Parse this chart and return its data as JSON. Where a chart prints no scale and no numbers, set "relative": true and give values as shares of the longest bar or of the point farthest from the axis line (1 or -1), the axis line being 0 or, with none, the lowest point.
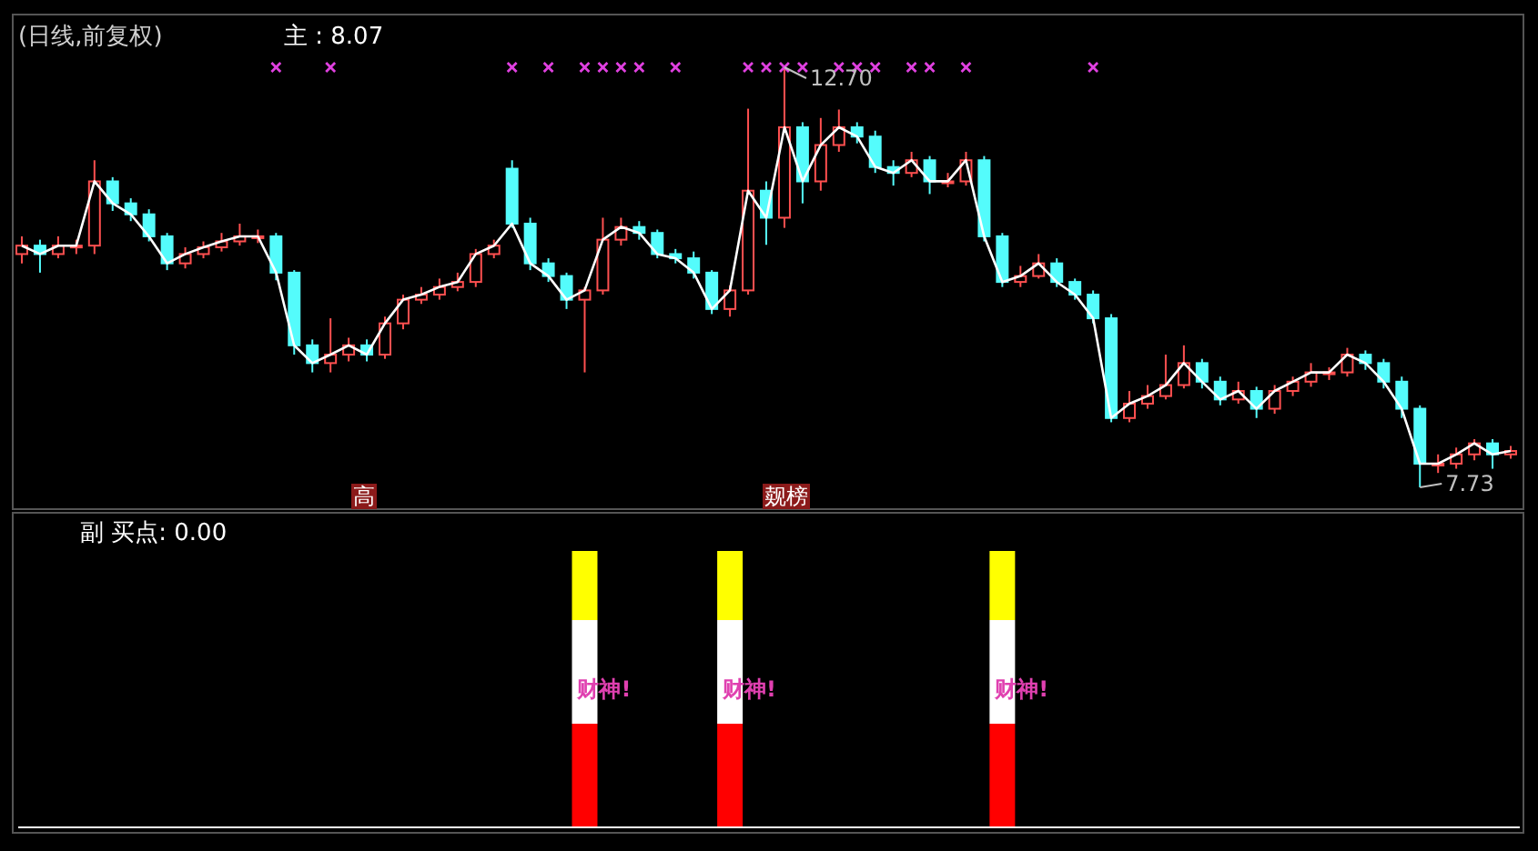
{
  "chart_data": [
    {
      "type": "candlestick",
      "title": "(日线,前复权)",
      "annotations": [
        "主 : 8.07",
        "高",
        "觌榜"
      ],
      "categories": [
        null,
        null,
        null,
        null,
        null,
        null,
        null,
        null,
        null,
        null,
        null,
        null,
        null,
        null,
        null,
        null,
        null,
        null,
        null,
        null,
        null,
        null,
        null,
        null,
        null,
        null,
        null,
        null,
        null,
        null,
        null,
        null,
        null,
        null,
        null,
        null,
        null,
        null,
        null,
        null,
        null,
        null,
        null,
        null,
        null,
        null,
        null,
        null,
        null,
        null,
        null,
        null,
        null,
        null,
        null,
        null,
        null,
        null,
        null,
        null,
        null,
        null,
        null,
        null,
        null,
        null,
        null,
        null,
        null,
        null,
        null,
        null,
        null,
        null,
        null,
        null,
        null,
        null,
        null,
        null,
        null,
        null,
        null
      ],
      "ohlc": [
        [
          10.49,
          10.7,
          10.38,
          10.59
        ],
        [
          10.59,
          10.66,
          10.27,
          10.49
        ],
        [
          10.49,
          10.7,
          10.44,
          10.59
        ],
        [
          10.59,
          10.66,
          10.49,
          10.59
        ],
        [
          10.59,
          11.6,
          10.49,
          11.35
        ],
        [
          11.35,
          11.4,
          11.0,
          11.09
        ],
        [
          11.09,
          11.15,
          10.88,
          10.96
        ],
        [
          10.96,
          11.02,
          10.64,
          10.7
        ],
        [
          10.7,
          10.74,
          10.3,
          10.38
        ],
        [
          10.38,
          10.57,
          10.32,
          10.49
        ],
        [
          10.49,
          10.64,
          10.44,
          10.57
        ],
        [
          10.57,
          10.74,
          10.52,
          10.64
        ],
        [
          10.64,
          10.85,
          10.59,
          10.7
        ],
        [
          10.7,
          10.78,
          10.62,
          10.7
        ],
        [
          10.7,
          10.74,
          10.18,
          10.27
        ],
        [
          10.27,
          10.3,
          9.3,
          9.41
        ],
        [
          9.41,
          9.48,
          9.09,
          9.2
        ],
        [
          9.2,
          9.73,
          9.09,
          9.3
        ],
        [
          9.3,
          9.5,
          9.22,
          9.41
        ],
        [
          9.41,
          9.48,
          9.22,
          9.3
        ],
        [
          9.3,
          9.75,
          9.25,
          9.67
        ],
        [
          9.67,
          10.01,
          9.6,
          9.95
        ],
        [
          9.95,
          10.1,
          9.9,
          10.01
        ],
        [
          10.01,
          10.2,
          9.95,
          10.1
        ],
        [
          10.1,
          10.27,
          10.05,
          10.16
        ],
        [
          10.16,
          10.55,
          10.1,
          10.49
        ],
        [
          10.49,
          10.66,
          10.44,
          10.59
        ],
        [
          11.5,
          11.6,
          10.8,
          10.85
        ],
        [
          10.85,
          10.92,
          10.3,
          10.38
        ],
        [
          10.38,
          10.44,
          10.16,
          10.23
        ],
        [
          10.23,
          10.27,
          9.84,
          9.95
        ],
        [
          9.95,
          10.1,
          9.09,
          10.06
        ],
        [
          10.06,
          10.92,
          10.01,
          10.66
        ],
        [
          10.66,
          10.92,
          10.59,
          10.81
        ],
        [
          10.81,
          10.88,
          10.66,
          10.74
        ],
        [
          10.74,
          10.78,
          10.44,
          10.49
        ],
        [
          10.49,
          10.55,
          10.38,
          10.44
        ],
        [
          10.44,
          10.52,
          10.2,
          10.27
        ],
        [
          10.27,
          10.3,
          9.78,
          9.84
        ],
        [
          9.84,
          10.12,
          9.75,
          10.06
        ],
        [
          10.06,
          12.21,
          10.01,
          11.24
        ],
        [
          11.24,
          11.35,
          10.6,
          10.92
        ],
        [
          10.92,
          12.7,
          10.8,
          11.99
        ],
        [
          11.99,
          12.05,
          11.09,
          11.35
        ],
        [
          11.35,
          12.1,
          11.24,
          11.78
        ],
        [
          11.78,
          12.2,
          11.7,
          11.99
        ],
        [
          11.99,
          12.05,
          11.8,
          11.88
        ],
        [
          11.88,
          11.95,
          11.45,
          11.52
        ],
        [
          11.52,
          11.6,
          11.3,
          11.45
        ],
        [
          11.45,
          11.7,
          11.4,
          11.6
        ],
        [
          11.6,
          11.65,
          11.2,
          11.35
        ],
        [
          11.35,
          11.45,
          11.28,
          11.35
        ],
        [
          11.35,
          11.7,
          11.3,
          11.6
        ],
        [
          11.6,
          11.65,
          10.64,
          10.7
        ],
        [
          10.7,
          10.74,
          10.1,
          10.16
        ],
        [
          10.16,
          10.35,
          10.1,
          10.23
        ],
        [
          10.23,
          10.49,
          10.2,
          10.38
        ],
        [
          10.38,
          10.44,
          10.1,
          10.16
        ],
        [
          10.16,
          10.2,
          9.95,
          10.01
        ],
        [
          10.01,
          10.06,
          9.67,
          9.73
        ],
        [
          9.73,
          9.78,
          8.5,
          8.55
        ],
        [
          8.55,
          8.87,
          8.5,
          8.72
        ],
        [
          8.72,
          8.94,
          8.66,
          8.81
        ],
        [
          8.81,
          9.3,
          8.77,
          8.94
        ],
        [
          8.94,
          9.41,
          8.9,
          9.2
        ],
        [
          9.2,
          9.25,
          8.9,
          8.98
        ],
        [
          8.98,
          9.04,
          8.7,
          8.77
        ],
        [
          8.77,
          8.98,
          8.72,
          8.87
        ],
        [
          8.87,
          8.92,
          8.55,
          8.66
        ],
        [
          8.66,
          8.94,
          8.6,
          8.87
        ],
        [
          8.87,
          9.04,
          8.81,
          8.98
        ],
        [
          8.98,
          9.2,
          8.92,
          9.09
        ],
        [
          9.09,
          9.15,
          9.0,
          9.09
        ],
        [
          9.09,
          9.38,
          9.04,
          9.3
        ],
        [
          9.3,
          9.35,
          9.12,
          9.2
        ],
        [
          9.2,
          9.25,
          8.9,
          8.98
        ],
        [
          8.98,
          9.04,
          8.55,
          8.66
        ],
        [
          8.66,
          8.7,
          7.73,
          8.01
        ],
        [
          8.01,
          8.12,
          7.9,
          8.01
        ],
        [
          8.01,
          8.2,
          7.95,
          8.12
        ],
        [
          8.12,
          8.3,
          8.05,
          8.25
        ],
        [
          8.25,
          8.3,
          7.95,
          8.12
        ],
        [
          8.12,
          8.22,
          8.07,
          8.16
        ]
      ],
      "value_labels": [
        null,
        null,
        null,
        null,
        null,
        null,
        null,
        null,
        null,
        null,
        null,
        null,
        null,
        null,
        null,
        null,
        null,
        null,
        null,
        null,
        null,
        null,
        null,
        null,
        null,
        null,
        null,
        null,
        null,
        null,
        null,
        null,
        null,
        null,
        null,
        null,
        null,
        null,
        null,
        null,
        null,
        null,
        "12.70",
        null,
        null,
        null,
        null,
        null,
        null,
        null,
        null,
        null,
        null,
        null,
        null,
        null,
        null,
        null,
        null,
        null,
        null,
        null,
        null,
        null,
        null,
        null,
        null,
        null,
        null,
        null,
        null,
        null,
        null,
        null,
        null,
        null,
        null,
        "7.73",
        null,
        null,
        null,
        null,
        null
      ],
      "series": [
        {
          "type": "line",
          "color": "#ffffff",
          "values": [
            10.59,
            10.49,
            10.59,
            10.59,
            11.35,
            11.09,
            10.96,
            10.7,
            10.38,
            10.49,
            10.57,
            10.64,
            10.7,
            10.7,
            10.27,
            9.41,
            9.2,
            9.3,
            9.41,
            9.3,
            9.67,
            9.95,
            10.01,
            10.1,
            10.16,
            10.49,
            10.59,
            10.85,
            10.38,
            10.23,
            9.95,
            10.06,
            10.66,
            10.81,
            10.74,
            10.49,
            10.44,
            10.27,
            9.84,
            10.06,
            11.24,
            10.92,
            11.99,
            11.35,
            11.78,
            11.99,
            11.88,
            11.52,
            11.45,
            11.6,
            11.35,
            11.35,
            11.6,
            10.7,
            10.16,
            10.23,
            10.38,
            10.16,
            10.01,
            9.73,
            8.55,
            8.72,
            8.81,
            8.94,
            9.2,
            8.98,
            8.77,
            8.87,
            8.66,
            8.87,
            8.98,
            9.09,
            9.09,
            9.3,
            9.2,
            8.98,
            8.66,
            8.01,
            8.01,
            8.12,
            8.25,
            8.12,
            8.16
          ]
        },
        {
          "type": "scatter",
          "marker": "cross",
          "color": "#e040e0",
          "values": [
            null,
            null,
            null,
            null,
            null,
            null,
            null,
            null,
            null,
            null,
            null,
            null,
            null,
            null,
            12.7,
            null,
            null,
            12.7,
            null,
            null,
            null,
            null,
            null,
            null,
            null,
            null,
            null,
            12.7,
            null,
            12.7,
            null,
            12.7,
            12.7,
            12.7,
            12.7,
            null,
            12.7,
            null,
            null,
            null,
            12.7,
            12.7,
            12.7,
            12.7,
            null,
            12.7,
            12.7,
            12.7,
            null,
            12.7,
            12.7,
            null,
            12.7,
            null,
            null,
            null,
            null,
            null,
            null,
            12.7,
            null,
            null,
            null,
            null,
            null,
            null,
            null,
            null,
            null,
            null,
            null,
            null,
            null,
            null,
            null,
            null,
            null,
            null,
            null,
            null,
            null,
            null,
            null
          ]
        }
      ]
    },
    {
      "type": "bar",
      "stacked": true,
      "relative": true,
      "annotations": [
        "副 买点: 0.00",
        "财神!",
        "财神!",
        "财神!"
      ],
      "categories": [
        null,
        null,
        null,
        null,
        null,
        null,
        null,
        null,
        null,
        null,
        null,
        null,
        null,
        null,
        null,
        null,
        null,
        null,
        null,
        null,
        null,
        null,
        null,
        null,
        null,
        null,
        null,
        null,
        null,
        null,
        null,
        null,
        null,
        null,
        null,
        null,
        null,
        null,
        null,
        null,
        null,
        null,
        null,
        null,
        null,
        null,
        null,
        null,
        null,
        null,
        null,
        null,
        null,
        null,
        null,
        null,
        null,
        null,
        null,
        null,
        null,
        null,
        null,
        null,
        null,
        null,
        null,
        null,
        null,
        null,
        null,
        null,
        null,
        null,
        null,
        null,
        null,
        null,
        null,
        null,
        null,
        null,
        null
      ],
      "series": [
        {
          "color": "#ff0000",
          "values": [
            null,
            null,
            null,
            null,
            null,
            null,
            null,
            null,
            null,
            null,
            null,
            null,
            null,
            null,
            null,
            null,
            null,
            null,
            null,
            null,
            null,
            null,
            null,
            null,
            null,
            null,
            null,
            null,
            null,
            null,
            null,
            0.375,
            null,
            null,
            null,
            null,
            null,
            null,
            null,
            0.375,
            null,
            null,
            null,
            null,
            null,
            null,
            null,
            null,
            null,
            null,
            null,
            null,
            null,
            null,
            0.375,
            null,
            null,
            null,
            null,
            null,
            null,
            null,
            null,
            null,
            null,
            null,
            null,
            null,
            null,
            null,
            null,
            null,
            null,
            null,
            null,
            null,
            null,
            null,
            null,
            null,
            null,
            null,
            null
          ]
        },
        {
          "color": "#ffffff",
          "values": [
            null,
            null,
            null,
            null,
            null,
            null,
            null,
            null,
            null,
            null,
            null,
            null,
            null,
            null,
            null,
            null,
            null,
            null,
            null,
            null,
            null,
            null,
            null,
            null,
            null,
            null,
            null,
            null,
            null,
            null,
            null,
            0.375,
            null,
            null,
            null,
            null,
            null,
            null,
            null,
            0.375,
            null,
            null,
            null,
            null,
            null,
            null,
            null,
            null,
            null,
            null,
            null,
            null,
            null,
            null,
            0.375,
            null,
            null,
            null,
            null,
            null,
            null,
            null,
            null,
            null,
            null,
            null,
            null,
            null,
            null,
            null,
            null,
            null,
            null,
            null,
            null,
            null,
            null,
            null,
            null,
            null,
            null,
            null,
            null
          ]
        },
        {
          "color": "#ffff00",
          "values": [
            null,
            null,
            null,
            null,
            null,
            null,
            null,
            null,
            null,
            null,
            null,
            null,
            null,
            null,
            null,
            null,
            null,
            null,
            null,
            null,
            null,
            null,
            null,
            null,
            null,
            null,
            null,
            null,
            null,
            null,
            null,
            0.25,
            null,
            null,
            null,
            null,
            null,
            null,
            null,
            0.25,
            null,
            null,
            null,
            null,
            null,
            null,
            null,
            null,
            null,
            null,
            null,
            null,
            null,
            null,
            0.25,
            null,
            null,
            null,
            null,
            null,
            null,
            null,
            null,
            null,
            null,
            null,
            null,
            null,
            null,
            null,
            null,
            null,
            null,
            null,
            null,
            null,
            null,
            null,
            null,
            null,
            null,
            null,
            null
          ]
        }
      ]
    }
  ]
}
